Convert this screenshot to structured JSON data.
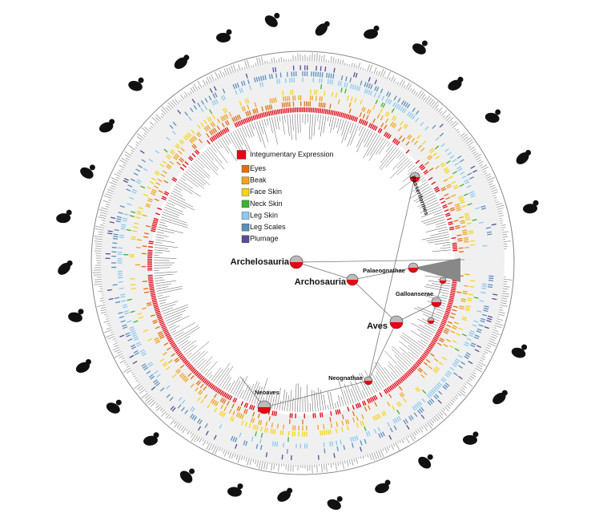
{
  "legend": {
    "items": [
      {
        "label": "Integumentary Expression",
        "color": "#e30613"
      },
      {
        "label": "Eyes",
        "color": "#e0700f"
      },
      {
        "label": "Beak",
        "color": "#f5a21c"
      },
      {
        "label": "Face Skin",
        "color": "#f7d417"
      },
      {
        "label": "Neck Skin",
        "color": "#3bb233"
      },
      {
        "label": "Leg Skin",
        "color": "#8ccaf0"
      },
      {
        "label": "Leg Scales",
        "color": "#5b8fbf"
      },
      {
        "label": "Plumage",
        "color": "#5b4a9a"
      }
    ]
  },
  "clades": [
    {
      "label": "Archelosauria"
    },
    {
      "label": "Archosauria"
    },
    {
      "label": "Palaeognathae"
    },
    {
      "label": "Galloanserae"
    },
    {
      "label": "Aves"
    },
    {
      "label": "Neognathae"
    },
    {
      "label": "Neoaves"
    },
    {
      "label": "Passeriformes"
    }
  ]
}
